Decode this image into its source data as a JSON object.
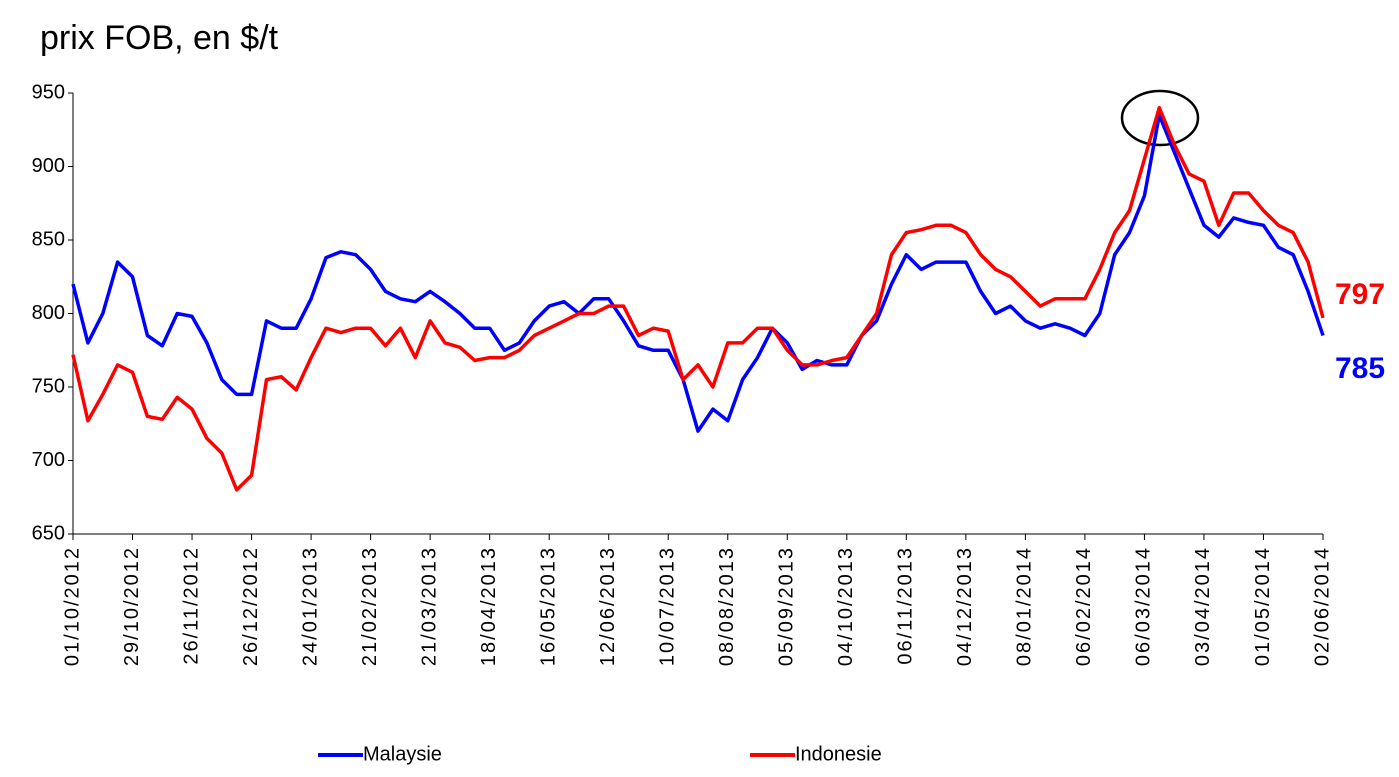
{
  "chart_data": {
    "type": "line",
    "title": "prix FOB, en $/t",
    "categories": [
      "01/10/2012",
      null,
      null,
      null,
      "29/10/2012",
      null,
      null,
      null,
      "26/11/2012",
      null,
      null,
      null,
      "26/12/2012",
      null,
      null,
      null,
      "24/01/2013",
      null,
      null,
      null,
      "21/02/2013",
      null,
      null,
      null,
      "21/03/2013",
      null,
      null,
      null,
      "18/04/2013",
      null,
      null,
      null,
      "16/05/2013",
      null,
      null,
      null,
      "12/06/2013",
      null,
      null,
      null,
      "10/07/2013",
      null,
      null,
      null,
      "08/08/2013",
      null,
      null,
      null,
      "05/09/2013",
      null,
      null,
      null,
      "04/10/2013",
      null,
      null,
      null,
      "06/11/2013",
      null,
      null,
      null,
      "04/12/2013",
      null,
      null,
      null,
      "08/01/2014",
      null,
      null,
      null,
      "06/02/2014",
      null,
      null,
      null,
      "06/03/2014",
      null,
      null,
      null,
      "03/04/2014",
      null,
      null,
      null,
      "01/05/2014",
      null,
      null,
      null,
      "02/06/2014"
    ],
    "series": [
      {
        "name": "Malaysie",
        "color": "#0000ff",
        "values": [
          820,
          780,
          800,
          835,
          825,
          785,
          778,
          800,
          798,
          780,
          755,
          745,
          745,
          795,
          790,
          790,
          810,
          838,
          842,
          840,
          830,
          815,
          810,
          808,
          815,
          808,
          800,
          790,
          790,
          775,
          780,
          795,
          805,
          808,
          800,
          810,
          810,
          795,
          778,
          775,
          775,
          755,
          720,
          735,
          727,
          755,
          770,
          790,
          780,
          762,
          768,
          765,
          765,
          785,
          795,
          820,
          840,
          830,
          835,
          835,
          835,
          815,
          800,
          805,
          795,
          790,
          793,
          790,
          785,
          800,
          840,
          855,
          880,
          935,
          910,
          885,
          860,
          852,
          865,
          862,
          860,
          845,
          840,
          815,
          785
        ]
      },
      {
        "name": "Indonesie",
        "color": "#ff0000",
        "values": [
          772,
          727,
          745,
          765,
          760,
          730,
          728,
          743,
          735,
          715,
          705,
          680,
          690,
          755,
          757,
          748,
          770,
          790,
          787,
          790,
          790,
          778,
          790,
          770,
          795,
          780,
          777,
          768,
          770,
          770,
          775,
          785,
          790,
          795,
          800,
          800,
          805,
          805,
          785,
          790,
          788,
          755,
          765,
          750,
          780,
          780,
          790,
          790,
          775,
          765,
          765,
          768,
          770,
          785,
          800,
          840,
          855,
          857,
          860,
          860,
          855,
          840,
          830,
          825,
          815,
          805,
          810,
          810,
          810,
          830,
          855,
          870,
          905,
          940,
          915,
          895,
          890,
          860,
          882,
          882,
          870,
          860,
          855,
          835,
          797
        ]
      }
    ],
    "annotations": [
      {
        "text": "797",
        "color": "#ff0000"
      },
      {
        "text": "785",
        "color": "#0000ff"
      }
    ],
    "ylim": [
      650,
      950
    ],
    "yticks": [
      650,
      700,
      750,
      800,
      850,
      900,
      950
    ],
    "legend": "bottom"
  }
}
